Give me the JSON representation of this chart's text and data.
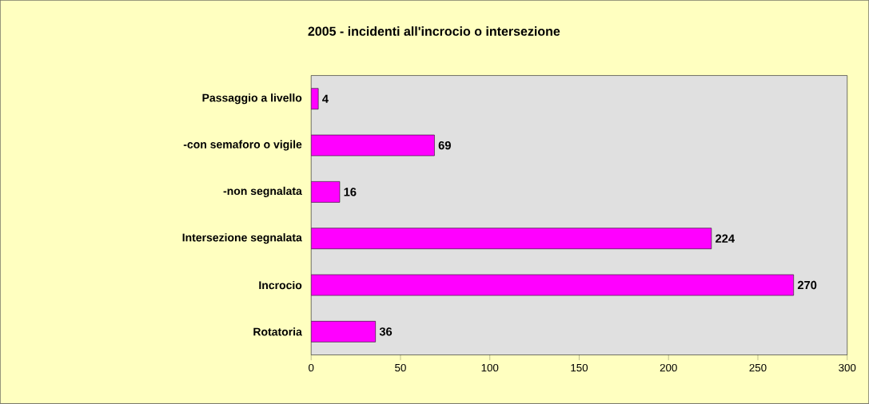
{
  "chart_data": {
    "type": "bar",
    "orientation": "horizontal",
    "title": "2005 - incidenti all'incrocio o intersezione",
    "categories": [
      "Passaggio a livello",
      "-con semaforo o vigile",
      "-non segnalata",
      "Intersezione segnalata",
      "Incrocio",
      "Rotatoria"
    ],
    "values": [
      4,
      69,
      16,
      224,
      270,
      36
    ],
    "color": "#ff00ff",
    "xlim": [
      0,
      300
    ],
    "xticks": [
      0,
      50,
      100,
      150,
      200,
      250,
      300
    ],
    "data_labels": true
  }
}
